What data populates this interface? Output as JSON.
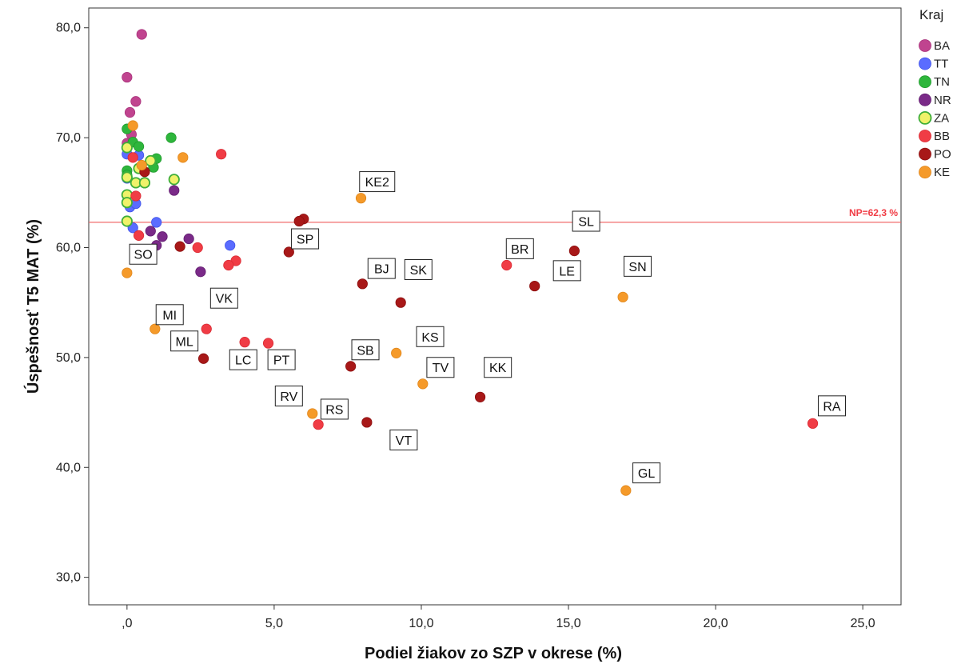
{
  "chart_data": {
    "type": "scatter",
    "xlabel": "Podiel žiakov zo SZP v okrese (%)",
    "ylabel": "Úspešnosť T5 MAT (%)",
    "xlim": [
      -1.3,
      26.3
    ],
    "ylim": [
      27.5,
      81.8
    ],
    "x_ticks": [
      0,
      5,
      10,
      15,
      20,
      25
    ],
    "x_tick_labels": [
      ",0",
      "5,0",
      "10,0",
      "15,0",
      "20,0",
      "25,0"
    ],
    "y_ticks": [
      30,
      40,
      50,
      60,
      70,
      80
    ],
    "y_tick_labels": [
      "30,0",
      "40,0",
      "50,0",
      "60,0",
      "70,0",
      "80,0"
    ],
    "grid": false,
    "legend": {
      "title": "Kraj",
      "position": "right"
    },
    "reference_line": {
      "axis": "y",
      "value": 62.3,
      "label": "NP=62,3 %",
      "color": "#f26c6c"
    },
    "series": [
      {
        "name": "BA",
        "color": "#c0448f",
        "stroke": "#a8327a",
        "points": [
          {
            "x": 0.5,
            "y": 79.4
          },
          {
            "x": 0.0,
            "y": 75.5
          },
          {
            "x": 0.3,
            "y": 73.3
          },
          {
            "x": 0.1,
            "y": 72.3
          },
          {
            "x": 0.15,
            "y": 70.3
          },
          {
            "x": 0.0,
            "y": 69.5
          }
        ]
      },
      {
        "name": "TT",
        "color": "#5a6cff",
        "stroke": "#3f52e8",
        "points": [
          {
            "x": 0.0,
            "y": 68.5
          },
          {
            "x": 0.4,
            "y": 68.4
          },
          {
            "x": 0.1,
            "y": 63.7
          },
          {
            "x": 1.0,
            "y": 62.3
          },
          {
            "x": 0.2,
            "y": 61.8
          },
          {
            "x": 3.5,
            "y": 60.2
          },
          {
            "x": 0.3,
            "y": 64.0
          },
          {
            "x": 0.0,
            "y": 66.3
          }
        ]
      },
      {
        "name": "TN",
        "color": "#2eb63c",
        "stroke": "#1f9a2c",
        "points": [
          {
            "x": 0.0,
            "y": 70.8
          },
          {
            "x": 0.2,
            "y": 69.6
          },
          {
            "x": 0.4,
            "y": 69.2
          },
          {
            "x": 1.5,
            "y": 70.0
          },
          {
            "x": 1.0,
            "y": 68.1
          },
          {
            "x": 0.9,
            "y": 67.3
          },
          {
            "x": 0.0,
            "y": 67.0
          },
          {
            "x": 0.0,
            "y": 66.6
          }
        ]
      },
      {
        "name": "NR",
        "color": "#7a2a88",
        "stroke": "#621d70",
        "points": [
          {
            "x": 1.6,
            "y": 65.2
          },
          {
            "x": 0.8,
            "y": 61.5
          },
          {
            "x": 1.2,
            "y": 61.0
          },
          {
            "x": 2.1,
            "y": 60.8
          },
          {
            "x": 1.0,
            "y": 60.2
          },
          {
            "x": 2.5,
            "y": 57.8
          }
        ]
      },
      {
        "name": "ZA",
        "color": "#f0f26a",
        "stroke": "#3fae3a",
        "points": [
          {
            "x": 0.0,
            "y": 69.1
          },
          {
            "x": 0.8,
            "y": 67.9
          },
          {
            "x": 0.4,
            "y": 67.2
          },
          {
            "x": 0.0,
            "y": 66.4
          },
          {
            "x": 0.3,
            "y": 65.9
          },
          {
            "x": 0.6,
            "y": 65.9
          },
          {
            "x": 1.6,
            "y": 66.2
          },
          {
            "x": 0.0,
            "y": 64.8
          },
          {
            "x": 0.0,
            "y": 64.1
          },
          {
            "x": 0.0,
            "y": 62.4
          }
        ]
      },
      {
        "name": "BB",
        "color": "#f03c45",
        "stroke": "#d92a33",
        "points": [
          {
            "x": 3.2,
            "y": 68.5
          },
          {
            "x": 0.3,
            "y": 64.7
          },
          {
            "x": 0.4,
            "y": 61.1
          },
          {
            "x": 2.4,
            "y": 60.0
          },
          {
            "x": 3.7,
            "y": 58.8
          },
          {
            "x": 3.45,
            "y": 58.4
          },
          {
            "x": 12.9,
            "y": 58.4
          },
          {
            "x": 2.7,
            "y": 52.6
          },
          {
            "x": 4.0,
            "y": 51.4
          },
          {
            "x": 4.8,
            "y": 51.3
          },
          {
            "x": 6.5,
            "y": 43.9
          },
          {
            "x": 23.3,
            "y": 44.0
          },
          {
            "x": 0.2,
            "y": 68.2
          }
        ]
      },
      {
        "name": "PO",
        "color": "#a81818",
        "stroke": "#8c0f0f",
        "points": [
          {
            "x": 0.6,
            "y": 66.9
          },
          {
            "x": 6.0,
            "y": 62.6
          },
          {
            "x": 5.85,
            "y": 62.4
          },
          {
            "x": 15.2,
            "y": 59.7
          },
          {
            "x": 1.8,
            "y": 60.1
          },
          {
            "x": 5.5,
            "y": 59.6
          },
          {
            "x": 8.0,
            "y": 56.7
          },
          {
            "x": 13.85,
            "y": 56.5
          },
          {
            "x": 9.3,
            "y": 55.0
          },
          {
            "x": 2.6,
            "y": 49.9
          },
          {
            "x": 7.6,
            "y": 49.2
          },
          {
            "x": 12.0,
            "y": 46.4
          },
          {
            "x": 8.15,
            "y": 44.1
          }
        ]
      },
      {
        "name": "KE",
        "color": "#f59a2a",
        "stroke": "#e0861a",
        "points": [
          {
            "x": 0.2,
            "y": 71.1
          },
          {
            "x": 1.9,
            "y": 68.2
          },
          {
            "x": 0.5,
            "y": 67.5
          },
          {
            "x": 7.95,
            "y": 64.5
          },
          {
            "x": 0.0,
            "y": 57.7
          },
          {
            "x": 16.85,
            "y": 55.5
          },
          {
            "x": 0.95,
            "y": 52.6
          },
          {
            "x": 9.15,
            "y": 50.4
          },
          {
            "x": 10.05,
            "y": 47.6
          },
          {
            "x": 6.3,
            "y": 44.9
          },
          {
            "x": 16.95,
            "y": 37.9
          }
        ]
      }
    ],
    "annotations": [
      {
        "text": "KE2",
        "x": 8.5,
        "y": 66.0
      },
      {
        "text": "SL",
        "x": 15.6,
        "y": 62.4
      },
      {
        "text": "SP",
        "x": 6.05,
        "y": 60.8
      },
      {
        "text": "BR",
        "x": 13.35,
        "y": 59.9
      },
      {
        "text": "SO",
        "x": 0.55,
        "y": 59.4
      },
      {
        "text": "BJ",
        "x": 8.65,
        "y": 58.1
      },
      {
        "text": "SK",
        "x": 9.9,
        "y": 58.0
      },
      {
        "text": "LE",
        "x": 14.95,
        "y": 57.9
      },
      {
        "text": "SN",
        "x": 17.35,
        "y": 58.3
      },
      {
        "text": "VK",
        "x": 3.3,
        "y": 55.4
      },
      {
        "text": "MI",
        "x": 1.45,
        "y": 53.9
      },
      {
        "text": "KS",
        "x": 10.3,
        "y": 51.9
      },
      {
        "text": "ML",
        "x": 1.95,
        "y": 51.5
      },
      {
        "text": "SB",
        "x": 8.1,
        "y": 50.7
      },
      {
        "text": "LC",
        "x": 3.95,
        "y": 49.8
      },
      {
        "text": "PT",
        "x": 5.25,
        "y": 49.8
      },
      {
        "text": "TV",
        "x": 10.65,
        "y": 49.1
      },
      {
        "text": "KK",
        "x": 12.6,
        "y": 49.1
      },
      {
        "text": "RV",
        "x": 5.5,
        "y": 46.5
      },
      {
        "text": "RS",
        "x": 7.05,
        "y": 45.3
      },
      {
        "text": "VT",
        "x": 9.4,
        "y": 42.5
      },
      {
        "text": "RA",
        "x": 23.95,
        "y": 45.6
      },
      {
        "text": "GL",
        "x": 17.65,
        "y": 39.5
      }
    ]
  }
}
